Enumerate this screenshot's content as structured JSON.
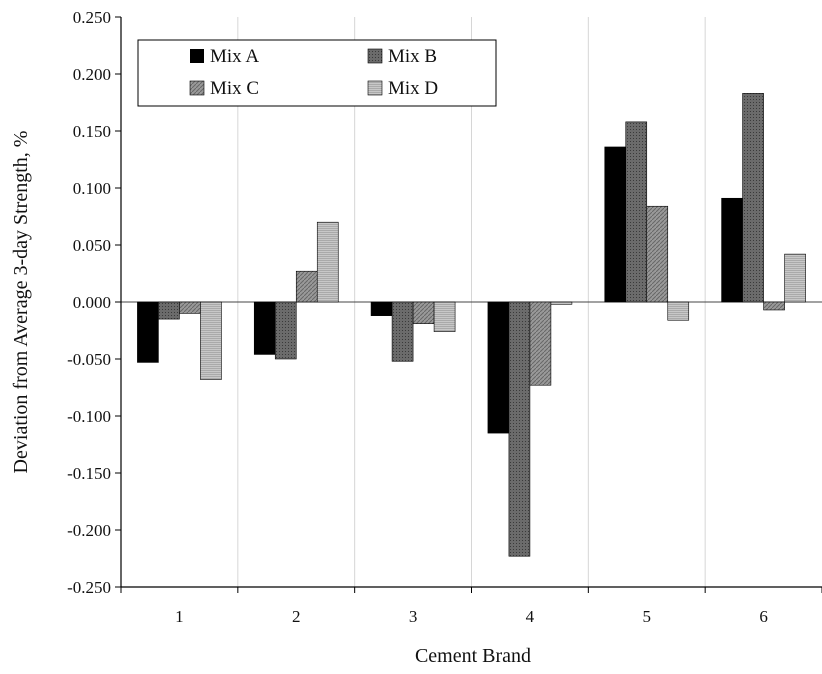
{
  "chart_data": {
    "type": "bar",
    "xlabel": "Cement Brand",
    "ylabel": "Deviation from Average 3-day Strength, %",
    "categories": [
      "1",
      "2",
      "3",
      "4",
      "5",
      "6"
    ],
    "ylim": [
      -0.25,
      0.25
    ],
    "yticks": [
      "0.250",
      "0.200",
      "0.150",
      "0.100",
      "0.050",
      "0.000",
      "-0.050",
      "-0.100",
      "-0.150",
      "-0.200",
      "-0.250"
    ],
    "grid": "vertical separators between categories",
    "legend_position": "top-left",
    "series": [
      {
        "name": "Mix A",
        "values": [
          -0.053,
          -0.046,
          -0.012,
          -0.115,
          0.136,
          0.091
        ],
        "color": "#000000"
      },
      {
        "name": "Mix B",
        "values": [
          -0.015,
          -0.05,
          -0.052,
          -0.223,
          0.158,
          0.183
        ],
        "color": "#6b6b6b"
      },
      {
        "name": "Mix C",
        "values": [
          -0.01,
          0.027,
          -0.019,
          -0.073,
          0.084,
          -0.007
        ],
        "color": "#8f8f8f"
      },
      {
        "name": "Mix D",
        "values": [
          -0.068,
          0.07,
          -0.026,
          -0.002,
          -0.016,
          0.042
        ],
        "color": "#c4c4c4"
      }
    ]
  }
}
